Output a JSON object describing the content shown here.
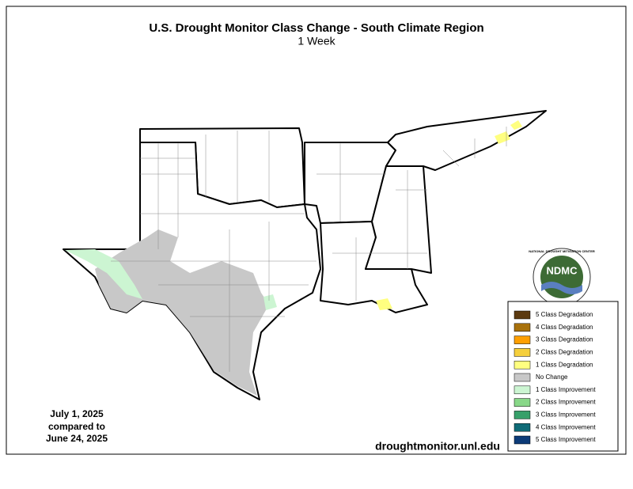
{
  "header": {
    "title": "U.S. Drought Monitor Class Change - South Climate Region",
    "subtitle": "1 Week"
  },
  "date": [
    "July 1, 2025",
    "compared to",
    "June 24, 2025"
  ],
  "url": "droughtmonitor.unl.edu",
  "logo": {
    "name": "NDMC",
    "top": "NATIONAL DROUGHT MITIGATION CENTER",
    "bottom": "UNIVERSITY OF NEBRASKA"
  },
  "legend": [
    {
      "label": "5 Class Degradation",
      "color": "#5c3a10"
    },
    {
      "label": "4 Class Degradation",
      "color": "#a8710c"
    },
    {
      "label": "3 Class Degradation",
      "color": "#ff9f00"
    },
    {
      "label": "2 Class Degradation",
      "color": "#f5cf3c"
    },
    {
      "label": "1 Class Degradation",
      "color": "#ffff80"
    },
    {
      "label": "No Change",
      "color": "#c8c8c8"
    },
    {
      "label": "1 Class Improvement",
      "color": "#ccf5d2"
    },
    {
      "label": "2 Class Improvement",
      "color": "#88d888"
    },
    {
      "label": "3 Class Improvement",
      "color": "#37a06a"
    },
    {
      "label": "4 Class Improvement",
      "color": "#0f6c78"
    },
    {
      "label": "5 Class Improvement",
      "color": "#0c3b78"
    }
  ]
}
